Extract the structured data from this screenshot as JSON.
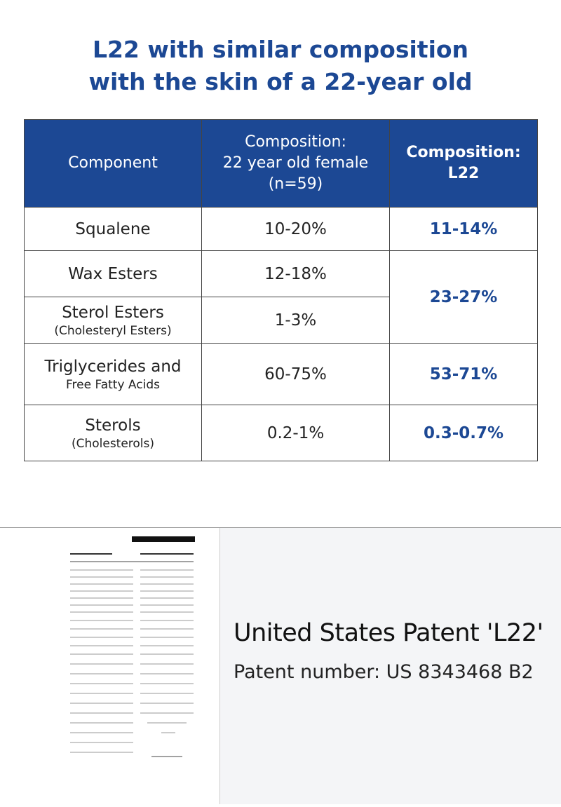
{
  "header": {
    "title": [
      "L22 with similar composition",
      "with the skin of a 22-year old"
    ]
  },
  "table": {
    "columns": [
      [
        "Component"
      ],
      [
        "Composition:",
        "22 year old female",
        "(n=59)"
      ],
      [
        "Composition:",
        "L22"
      ]
    ],
    "rows": [
      {
        "component": [
          "Squalene"
        ],
        "female": "10-20%",
        "l22": "11-14%"
      },
      {
        "component": [
          "Wax Esters"
        ],
        "female": "12-18%",
        "l22": "23-27%"
      },
      {
        "component": [
          "Sterol Esters",
          "(Cholesteryl Esters)"
        ],
        "female": "1-3%"
      },
      {
        "component": [
          "Triglycerides and",
          "Free Fatty Acids"
        ],
        "female": "60-75%",
        "l22": "53-71%"
      },
      {
        "component": [
          "Sterols",
          "(Cholesterols)"
        ],
        "female": "0.2-1%",
        "l22": "0.3-0.7%"
      }
    ]
  },
  "patent": {
    "title": "United States Patent 'L22'",
    "number": "Patent number: US 8343468 B2"
  }
}
